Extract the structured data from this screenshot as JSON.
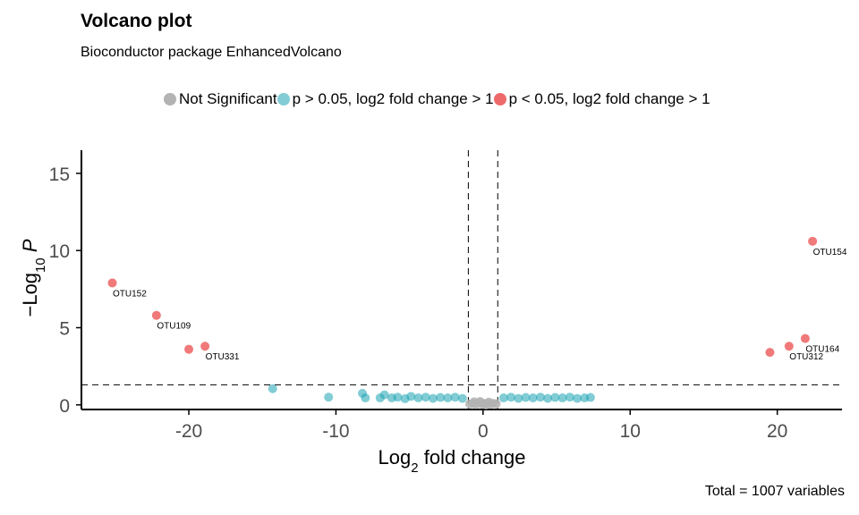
{
  "chart_data": {
    "type": "scatter",
    "title": "Volcano plot",
    "subtitle": "Bioconductor package EnhancedVolcano",
    "caption": "Total = 1007 variables",
    "xlabel": "Log2 fold change",
    "ylabel": "-Log10 P",
    "xlim": [
      -27.3,
      24.4
    ],
    "ylim": [
      -0.3,
      16.5
    ],
    "x_ticks": [
      -20,
      -10,
      0,
      10,
      20
    ],
    "y_ticks": [
      0,
      5,
      10,
      15
    ],
    "cutoffs": {
      "fold_change": [
        -1,
        1
      ],
      "p_value_log10": 1.3
    },
    "grid": false,
    "legend_position": "top",
    "series": [
      {
        "name": "Not Significant",
        "color": "#b3b3b3",
        "points": [
          [
            -0.9,
            0.05
          ],
          [
            -0.7,
            0.1
          ],
          [
            -0.5,
            0.02
          ],
          [
            -0.3,
            0.15
          ],
          [
            -0.1,
            0.05
          ],
          [
            0.1,
            0.08
          ],
          [
            0.3,
            0.12
          ],
          [
            0.5,
            0.03
          ],
          [
            0.7,
            0.1
          ],
          [
            0.9,
            0.06
          ],
          [
            -0.6,
            0.2
          ],
          [
            0.4,
            0.18
          ],
          [
            -0.2,
            0.22
          ],
          [
            0.2,
            0.0
          ],
          [
            0.0,
            0.1
          ]
        ]
      },
      {
        "name": "p > 0.05, log2 fold change > 1",
        "color": "#1aa3b3",
        "points": [
          [
            -14.3,
            1.05
          ],
          [
            -10.5,
            0.5
          ],
          [
            -8.2,
            0.75
          ],
          [
            -8.0,
            0.45
          ],
          [
            -7.0,
            0.45
          ],
          [
            -6.7,
            0.65
          ],
          [
            -6.2,
            0.45
          ],
          [
            -5.8,
            0.5
          ],
          [
            -5.3,
            0.4
          ],
          [
            -4.9,
            0.55
          ],
          [
            -4.4,
            0.45
          ],
          [
            -3.9,
            0.5
          ],
          [
            -3.4,
            0.42
          ],
          [
            -2.9,
            0.48
          ],
          [
            -2.4,
            0.45
          ],
          [
            -1.9,
            0.5
          ],
          [
            -1.4,
            0.42
          ],
          [
            1.4,
            0.45
          ],
          [
            1.9,
            0.5
          ],
          [
            2.4,
            0.42
          ],
          [
            2.9,
            0.48
          ],
          [
            3.4,
            0.45
          ],
          [
            3.9,
            0.5
          ],
          [
            4.4,
            0.42
          ],
          [
            4.9,
            0.48
          ],
          [
            5.4,
            0.45
          ],
          [
            5.9,
            0.5
          ],
          [
            6.4,
            0.42
          ],
          [
            6.9,
            0.45
          ],
          [
            7.3,
            0.48
          ]
        ]
      },
      {
        "name": "p < 0.05, log2 fold change > 1",
        "color": "#ee6a6a",
        "points": [
          {
            "x": -25.2,
            "y": 7.9,
            "label": "OTU152"
          },
          {
            "x": -22.2,
            "y": 5.8,
            "label": "OTU109"
          },
          {
            "x": -20.0,
            "y": 3.6,
            "label": ""
          },
          {
            "x": -18.9,
            "y": 3.8,
            "label": "OTU331"
          },
          {
            "x": 19.5,
            "y": 3.4,
            "label": ""
          },
          {
            "x": 20.8,
            "y": 3.8,
            "label": "OTU312"
          },
          {
            "x": 21.9,
            "y": 4.3,
            "label": "OTU164"
          },
          {
            "x": 22.4,
            "y": 10.6,
            "label": "OTU154"
          }
        ]
      }
    ]
  }
}
